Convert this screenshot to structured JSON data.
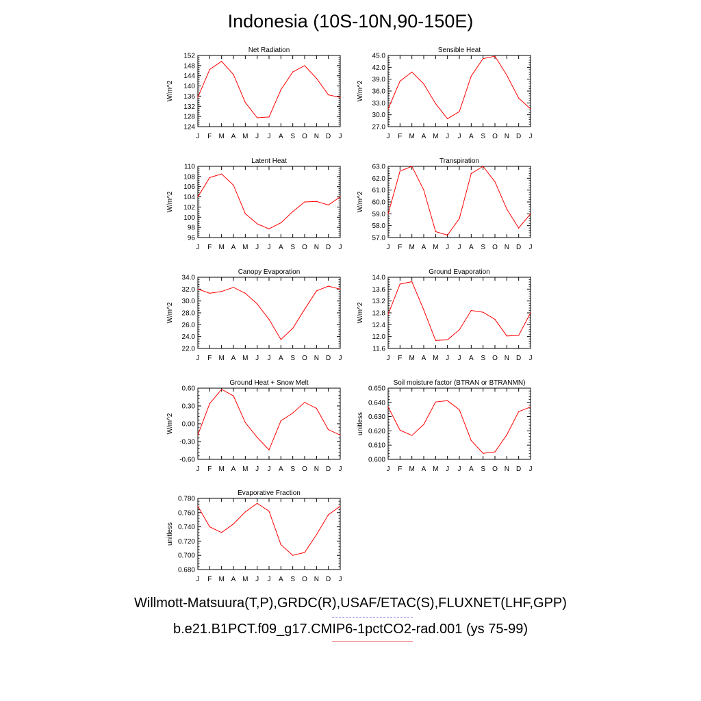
{
  "title": "Indonesia (10S-10N,90-150E)",
  "footer": {
    "obs_label": "Willmott-Matsuura(T,P),GRDC(R),USAF/ETAC(S),FLUXNET(LHF,GPP)",
    "case_label": "b.e21.B1PCT.f09_g17.CMIP6-1pctCO2-rad.001 (ys 75-99)",
    "obs_line_color": "#6f6fe8",
    "case_line_color": "#ee7070"
  },
  "month_labels": [
    "J",
    "F",
    "M",
    "A",
    "M",
    "J",
    "J",
    "A",
    "S",
    "O",
    "N",
    "D",
    "J"
  ],
  "line_color": "#ff0000",
  "chart_data": [
    {
      "type": "line",
      "title": "Net Radiation",
      "ylabel": "W/m^2",
      "ylim": [
        124,
        152
      ],
      "yticks": [
        "124",
        "128",
        "132",
        "136",
        "140",
        "144",
        "148",
        "152"
      ],
      "values": [
        135.5,
        146.5,
        149.7,
        144.5,
        133.5,
        127.5,
        127.8,
        138.5,
        145.5,
        148.0,
        143.0,
        136.5,
        135.5
      ]
    },
    {
      "type": "line",
      "title": "Sensible Heat",
      "ylabel": "W/m^2",
      "ylim": [
        27.0,
        45.0
      ],
      "yticks": [
        "27.0",
        "30.0",
        "33.0",
        "36.0",
        "39.0",
        "42.0",
        "45.0"
      ],
      "values": [
        31.5,
        38.5,
        40.8,
        37.8,
        32.8,
        29.0,
        30.8,
        39.8,
        44.2,
        44.8,
        40.0,
        34.2,
        31.5
      ]
    },
    {
      "type": "line",
      "title": "Latent Heat",
      "ylabel": "W/m^2",
      "ylim": [
        96,
        110
      ],
      "yticks": [
        "96",
        "98",
        "100",
        "102",
        "104",
        "106",
        "108",
        "110"
      ],
      "values": [
        104.0,
        107.8,
        108.5,
        106.3,
        100.7,
        98.7,
        97.7,
        98.9,
        101.1,
        103.0,
        103.1,
        102.4,
        104.0
      ]
    },
    {
      "type": "line",
      "title": "Transpiration",
      "ylabel": "W/m^2",
      "ylim": [
        57.0,
        63.0
      ],
      "yticks": [
        "57.0",
        "58.0",
        "59.0",
        "60.0",
        "61.0",
        "62.0",
        "63.0"
      ],
      "values": [
        59.0,
        62.6,
        63.0,
        61.0,
        57.5,
        57.2,
        58.6,
        62.4,
        63.0,
        61.7,
        59.4,
        57.8,
        59.0
      ]
    },
    {
      "type": "line",
      "title": "Canopy Evaporation",
      "ylabel": "W/m^2",
      "ylim": [
        22.0,
        34.0
      ],
      "yticks": [
        "22.0",
        "24.0",
        "26.0",
        "28.0",
        "30.0",
        "32.0",
        "34.0"
      ],
      "values": [
        32.0,
        31.3,
        31.6,
        32.3,
        31.3,
        29.5,
        26.9,
        23.5,
        25.4,
        28.6,
        31.7,
        32.5,
        32.0
      ]
    },
    {
      "type": "line",
      "title": "Ground Evaporation",
      "ylabel": "W/m^2",
      "ylim": [
        11.6,
        14.0
      ],
      "yticks": [
        "11.6",
        "12.0",
        "12.4",
        "12.8",
        "13.2",
        "13.6",
        "14.0"
      ],
      "values": [
        12.75,
        13.77,
        13.85,
        12.9,
        11.87,
        11.89,
        12.23,
        12.88,
        12.82,
        12.58,
        12.02,
        12.04,
        12.8
      ]
    },
    {
      "type": "line",
      "title": "Ground Heat + Snow Melt",
      "ylabel": "W/m^2",
      "ylim": [
        -0.6,
        0.6
      ],
      "yticks": [
        "-0.60",
        "-0.30",
        "0.00",
        "0.30",
        "0.60"
      ],
      "values": [
        -0.19,
        0.34,
        0.58,
        0.47,
        0.02,
        -0.23,
        -0.44,
        0.05,
        0.18,
        0.36,
        0.26,
        -0.1,
        -0.19
      ]
    },
    {
      "type": "line",
      "title": "Soil moisture factor (BTRAN or BTRANMN)",
      "ylabel": "unitless",
      "ylim": [
        0.6,
        0.65
      ],
      "yticks": [
        "0.600",
        "0.610",
        "0.620",
        "0.630",
        "0.640",
        "0.650"
      ],
      "values": [
        0.6368,
        0.6205,
        0.6168,
        0.6245,
        0.6403,
        0.6412,
        0.6348,
        0.6132,
        0.6042,
        0.6052,
        0.6172,
        0.6335,
        0.6368
      ]
    },
    {
      "type": "line",
      "title": "Evaporative Fraction",
      "ylabel": "unitless",
      "ylim": [
        0.68,
        0.78
      ],
      "yticks": [
        "0.680",
        "0.700",
        "0.720",
        "0.740",
        "0.760",
        "0.780"
      ],
      "values": [
        0.769,
        0.74,
        0.732,
        0.744,
        0.761,
        0.773,
        0.762,
        0.715,
        0.7,
        0.704,
        0.729,
        0.757,
        0.769
      ]
    }
  ]
}
